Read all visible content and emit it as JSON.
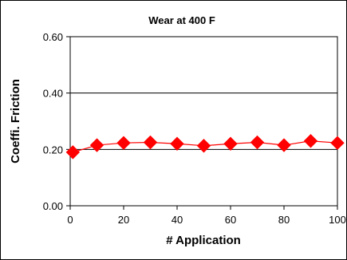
{
  "chart_data": {
    "type": "line",
    "title": "Wear at 400 F",
    "xlabel": "# Application",
    "ylabel": "Coeffi. Friction",
    "xlim": [
      0,
      100
    ],
    "ylim": [
      0,
      0.6
    ],
    "x_ticks": [
      "0",
      "20",
      "40",
      "60",
      "80",
      "100"
    ],
    "y_ticks": [
      "0.00",
      "0.20",
      "0.40",
      "0.60"
    ],
    "grid": "horizontal",
    "legend": "none",
    "marker": "diamond",
    "color": "#ff0000",
    "series": [
      {
        "x": [
          1,
          10,
          20,
          30,
          40,
          50,
          60,
          70,
          80,
          90,
          100
        ],
        "y": [
          0.19,
          0.215,
          0.223,
          0.225,
          0.22,
          0.213,
          0.22,
          0.225,
          0.215,
          0.23,
          0.223
        ]
      }
    ]
  }
}
